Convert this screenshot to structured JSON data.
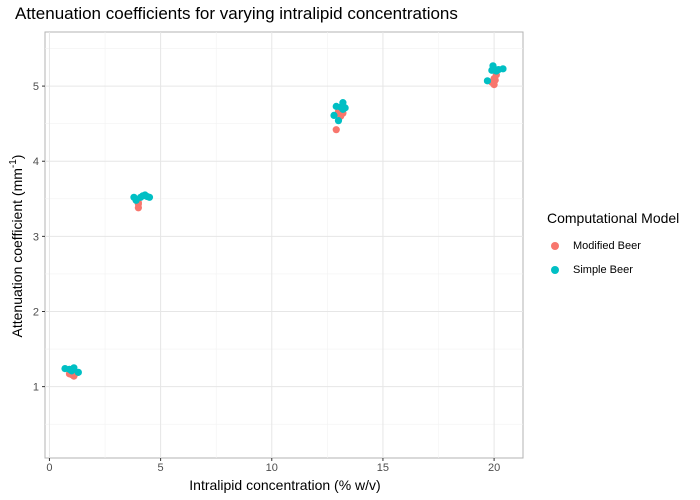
{
  "chart_data": {
    "type": "scatter",
    "title": "Attenuation coefficients for varying intralipid concentrations",
    "xlabel": "Intralipid concentration (% w/v)",
    "ylabel_main": "Attenuation coefficient (mm",
    "ylabel_sup": "-1",
    "ylabel_close": ")",
    "xlim": [
      -0.2,
      21.3
    ],
    "ylim": [
      0.05,
      5.72
    ],
    "xticks": [
      0,
      5,
      10,
      15,
      20
    ],
    "yticks": [
      1,
      2,
      3,
      4,
      5
    ],
    "grid": true,
    "legend": {
      "title": "Computational Model",
      "position": "right",
      "entries": [
        "Modified Beer",
        "Simple Beer"
      ]
    },
    "series": [
      {
        "name": "Modified Beer",
        "color": "#F8766D",
        "points": [
          [
            1.0,
            1.16
          ],
          [
            1.1,
            1.14
          ],
          [
            1.2,
            1.18
          ],
          [
            1.0,
            1.2
          ],
          [
            0.9,
            1.17
          ],
          [
            4.0,
            3.38
          ],
          [
            4.0,
            3.43
          ],
          [
            3.9,
            3.48
          ],
          [
            4.0,
            3.45
          ],
          [
            12.9,
            4.42
          ],
          [
            13.1,
            4.6
          ],
          [
            13.0,
            4.66
          ],
          [
            13.2,
            4.64
          ],
          [
            20.0,
            5.02
          ],
          [
            19.9,
            5.05
          ],
          [
            20.0,
            5.1
          ],
          [
            20.1,
            5.15
          ],
          [
            20.05,
            5.08
          ]
        ]
      },
      {
        "name": "Simple Beer",
        "color": "#00BFC4",
        "points": [
          [
            0.7,
            1.24
          ],
          [
            0.9,
            1.23
          ],
          [
            1.1,
            1.25
          ],
          [
            1.3,
            1.19
          ],
          [
            1.0,
            1.21
          ],
          [
            3.8,
            3.52
          ],
          [
            3.9,
            3.48
          ],
          [
            4.1,
            3.52
          ],
          [
            4.2,
            3.54
          ],
          [
            4.3,
            3.55
          ],
          [
            4.4,
            3.53
          ],
          [
            4.5,
            3.52
          ],
          [
            12.8,
            4.61
          ],
          [
            12.9,
            4.73
          ],
          [
            13.0,
            4.54
          ],
          [
            13.1,
            4.72
          ],
          [
            13.2,
            4.78
          ],
          [
            13.3,
            4.71
          ],
          [
            13.2,
            4.69
          ],
          [
            19.7,
            5.07
          ],
          [
            19.9,
            5.21
          ],
          [
            19.95,
            5.27
          ],
          [
            20.0,
            5.23
          ],
          [
            20.2,
            5.22
          ],
          [
            20.4,
            5.23
          ],
          [
            20.1,
            5.2
          ]
        ]
      }
    ]
  }
}
